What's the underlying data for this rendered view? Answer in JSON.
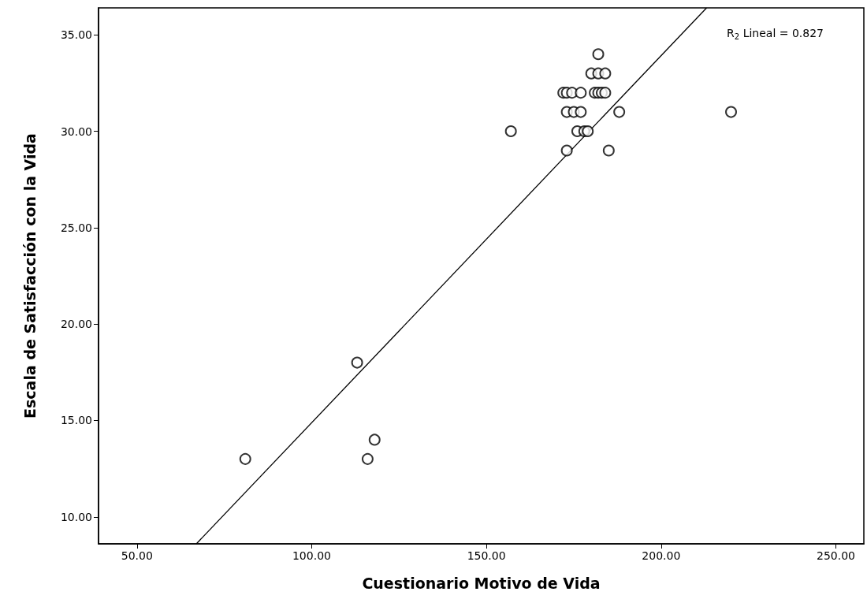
{
  "chart_data": {
    "type": "scatter",
    "xlabel": "Cuestionario Motivo de Vida",
    "ylabel": "Escala de Satisfacción con la Vida",
    "annotations": [
      "R$_{2}$ Lineal = 0.827"
    ],
    "xlim": [
      39,
      258
    ],
    "ylim": [
      8.6,
      36.4
    ],
    "xticks": [
      {
        "value": 50,
        "label": "50.00"
      },
      {
        "value": 100,
        "label": "100.00"
      },
      {
        "value": 150,
        "label": "150.00"
      },
      {
        "value": 200,
        "label": "200.00"
      },
      {
        "value": 250,
        "label": "250.00"
      }
    ],
    "yticks": [
      {
        "value": 10,
        "label": "10.00"
      },
      {
        "value": 15,
        "label": "15.00"
      },
      {
        "value": 20,
        "label": "20.00"
      },
      {
        "value": 25,
        "label": "25.00"
      },
      {
        "value": 30,
        "label": "30.00"
      },
      {
        "value": 35,
        "label": "35.00"
      }
    ],
    "grid": false,
    "marker": "circle",
    "series": [
      {
        "type": "scatter",
        "color": "#000000",
        "x": [
          81,
          113,
          116,
          118,
          157,
          220,
          182,
          180,
          182,
          184,
          172,
          173,
          174.5,
          177,
          181,
          182,
          183,
          184,
          173,
          175,
          177,
          188,
          176,
          178,
          179,
          173,
          185
        ],
        "values": [
          13,
          18,
          13,
          14,
          30,
          31,
          34,
          33,
          33,
          33,
          32,
          32,
          32,
          32,
          32,
          32,
          32,
          32,
          31,
          31,
          31,
          31,
          30,
          30,
          30,
          29,
          29
        ]
      },
      {
        "type": "line",
        "color": "#000000",
        "marker": "none",
        "line_style": "solid",
        "x": [
          67,
          213
        ],
        "values": [
          8.6,
          36.4
        ]
      }
    ]
  }
}
